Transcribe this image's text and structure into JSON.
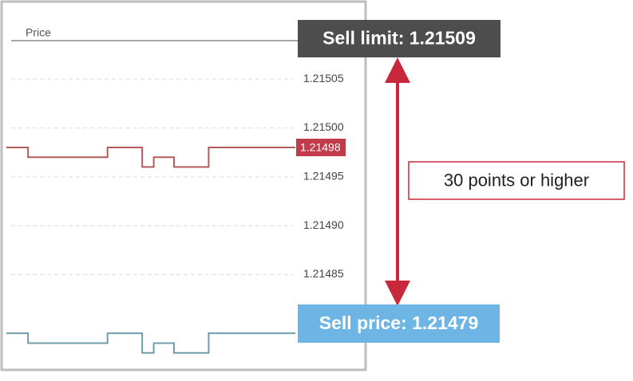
{
  "chart_data": {
    "type": "line",
    "title": "Price",
    "x": [
      0,
      7.5,
      7.5,
      35,
      35,
      47,
      47,
      51,
      51,
      58,
      58,
      70,
      70,
      100
    ],
    "xlim": [
      0,
      100
    ],
    "series": [
      {
        "color": "#b35c5c",
        "values": [
          1.21498,
          1.21498,
          1.21497,
          1.21497,
          1.21498,
          1.21498,
          1.21496,
          1.21496,
          1.21497,
          1.21497,
          1.21496,
          1.21496,
          1.21498,
          1.21498
        ]
      },
      {
        "color": "#6f9dab",
        "values": [
          1.21479,
          1.21479,
          1.21478,
          1.21478,
          1.21479,
          1.21479,
          1.21477,
          1.21477,
          1.21478,
          1.21478,
          1.21477,
          1.21477,
          1.21479,
          1.21479
        ]
      }
    ],
    "ylim": [
      1.21476,
      1.21509
    ],
    "yticks": [
      1.21505,
      {
        "value": 1.215,
        "label": "1.21500"
      },
      1.21495,
      {
        "value": 1.2149,
        "label": "1.21490"
      },
      1.21485
    ],
    "grid": true,
    "current_price": 1.21498,
    "current_price_color": "#c23b4a",
    "annotations": [
      {
        "text": "Sell limit: 1.21509",
        "color": "#4d4d4d"
      },
      {
        "text": "30 points or higher",
        "color": "#c8283c"
      },
      {
        "text": "Sell price: 1.21479",
        "color": "#6db5e5"
      }
    ]
  }
}
